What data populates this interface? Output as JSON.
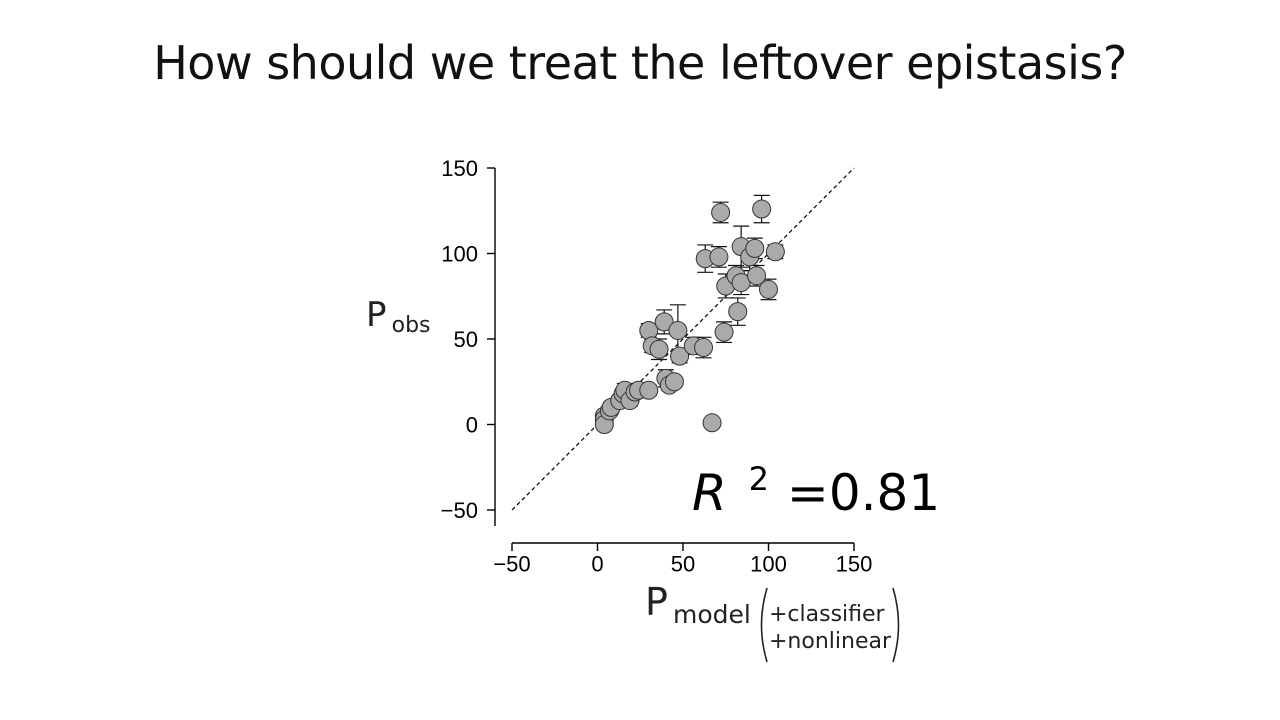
{
  "slide": {
    "title": "How should we treat the leftover epistasis?"
  },
  "chart_data": {
    "type": "scatter",
    "xlabel": {
      "main": "P",
      "sub": "model",
      "paren_line1": "+classifier",
      "paren_line2": "+nonlinear"
    },
    "ylabel": {
      "main": "P",
      "sub": "obs"
    },
    "xlim": [
      -50,
      150
    ],
    "ylim": [
      -50,
      150
    ],
    "xticks": [
      -50,
      0,
      50,
      100,
      150
    ],
    "yticks": [
      -50,
      0,
      50,
      100,
      150
    ],
    "xtick_labels": [
      "−50",
      "0",
      "50",
      "100",
      "150"
    ],
    "ytick_labels": [
      "−50",
      "0",
      "50",
      "100",
      "150"
    ],
    "identity_line": true,
    "annotation": {
      "symbol": "R",
      "sup": "2",
      "value": "=0.81"
    },
    "marker_fill": "#aaaaaa",
    "marker_edge": "#333333",
    "points": [
      {
        "x": 4,
        "y": 5,
        "err": 0
      },
      {
        "x": 4,
        "y": 3,
        "err": 0
      },
      {
        "x": 4,
        "y": 0,
        "err": 0
      },
      {
        "x": 7,
        "y": 8,
        "err": 2
      },
      {
        "x": 8,
        "y": 10,
        "err": 3
      },
      {
        "x": 13,
        "y": 14,
        "err": 2
      },
      {
        "x": 15,
        "y": 18,
        "err": 3
      },
      {
        "x": 16,
        "y": 20,
        "err": 4
      },
      {
        "x": 19,
        "y": 14,
        "err": 3
      },
      {
        "x": 22,
        "y": 19,
        "err": 2
      },
      {
        "x": 24,
        "y": 20,
        "err": 2
      },
      {
        "x": 30,
        "y": 20,
        "err": 3
      },
      {
        "x": 30,
        "y": 55,
        "err": 4
      },
      {
        "x": 32,
        "y": 46,
        "err": 4
      },
      {
        "x": 36,
        "y": 44,
        "err": 6
      },
      {
        "x": 39,
        "y": 60,
        "err": 7
      },
      {
        "x": 40,
        "y": 27,
        "err": 5
      },
      {
        "x": 42,
        "y": 23,
        "err": 3
      },
      {
        "x": 45,
        "y": 25,
        "err": 2
      },
      {
        "x": 47,
        "y": 55,
        "err": 15
      },
      {
        "x": 48,
        "y": 40,
        "err": 4
      },
      {
        "x": 56,
        "y": 46,
        "err": 5
      },
      {
        "x": 62,
        "y": 45,
        "err": 6
      },
      {
        "x": 63,
        "y": 97,
        "err": 8
      },
      {
        "x": 67,
        "y": 1,
        "err": 0
      },
      {
        "x": 71,
        "y": 98,
        "err": 6
      },
      {
        "x": 72,
        "y": 124,
        "err": 6
      },
      {
        "x": 74,
        "y": 54,
        "err": 6
      },
      {
        "x": 75,
        "y": 81,
        "err": 7
      },
      {
        "x": 81,
        "y": 87,
        "err": 6
      },
      {
        "x": 82,
        "y": 66,
        "err": 8
      },
      {
        "x": 84,
        "y": 104,
        "err": 12
      },
      {
        "x": 84,
        "y": 83,
        "err": 7
      },
      {
        "x": 89,
        "y": 98,
        "err": 8
      },
      {
        "x": 92,
        "y": 103,
        "err": 6
      },
      {
        "x": 93,
        "y": 87,
        "err": 6
      },
      {
        "x": 96,
        "y": 126,
        "err": 8
      },
      {
        "x": 100,
        "y": 79,
        "err": 6
      },
      {
        "x": 104,
        "y": 101,
        "err": 4
      }
    ]
  }
}
